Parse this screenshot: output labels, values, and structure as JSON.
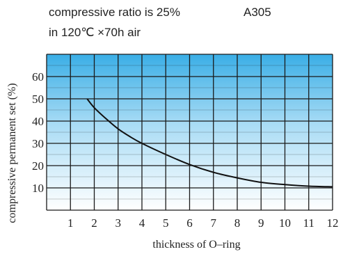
{
  "captions": {
    "line1": "compressive ratio is 25%",
    "code": "A305",
    "line2": "in 120℃ ×70h air"
  },
  "chart_data": {
    "type": "line",
    "xlabel": "thickness of O–ring",
    "ylabel": "compressive permanent set (%)",
    "xlim": [
      0,
      12
    ],
    "ylim": [
      0,
      70
    ],
    "x_ticks": [
      "1",
      "2",
      "3",
      "4",
      "5",
      "6",
      "7",
      "8",
      "9",
      "10",
      "11",
      "12"
    ],
    "y_ticks": [
      "10",
      "20",
      "30",
      "40",
      "50",
      "60"
    ],
    "grid": true,
    "series": [
      {
        "x": [
          1.7,
          2,
          2.5,
          3,
          3.5,
          4,
          5,
          6,
          7,
          8,
          9,
          10,
          11,
          12
        ],
        "values": [
          50,
          46,
          41,
          36.5,
          33,
          30,
          25,
          20.5,
          17,
          14.5,
          12.5,
          11.5,
          10.8,
          10.5
        ]
      }
    ]
  }
}
